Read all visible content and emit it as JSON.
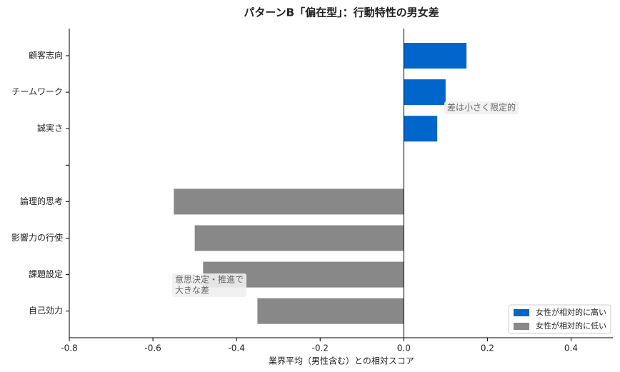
{
  "chart_data": {
    "type": "barh",
    "title": "パターンB「偏在型」：行動特性の男女差",
    "xlabel": "業界平均（男性含む）との相対スコア",
    "categories": [
      "顧客志向",
      "チームワーク",
      "誠実さ",
      null,
      "論理的思考",
      "影響力の行使",
      "課題設定",
      "自己効力"
    ],
    "series": [
      {
        "name": "女性が相対的に高い",
        "color": "#0066cc",
        "values": [
          0.15,
          0.1,
          0.08,
          null,
          null,
          null,
          null,
          null
        ]
      },
      {
        "name": "女性が相対的に低い",
        "color": "#888888",
        "values": [
          null,
          null,
          null,
          null,
          -0.55,
          -0.5,
          -0.48,
          -0.35
        ]
      }
    ],
    "xlim": [
      -0.8,
      0.5
    ],
    "xticks": [
      -0.8,
      -0.6,
      -0.4,
      -0.2,
      {
        "value": 0,
        "label": "0.0"
      },
      0.2,
      0.4
    ],
    "legend": "lower right",
    "annotations": [
      {
        "lines": [
          "差は小さく限定的"
        ]
      },
      {
        "lines": [
          "意思決定・推進で",
          "大きな差"
        ]
      }
    ]
  }
}
